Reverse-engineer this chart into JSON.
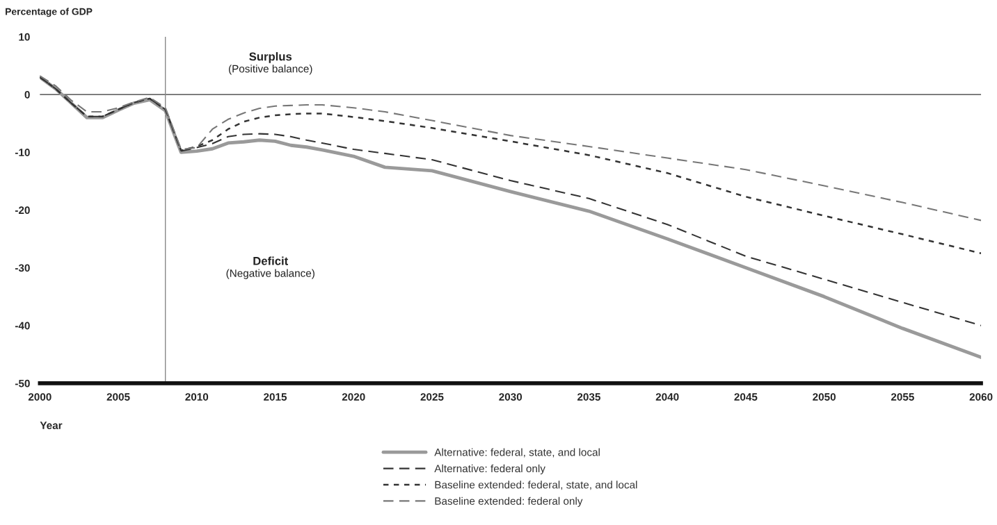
{
  "chart_data": {
    "type": "line",
    "ylabel": "Percentage of GDP",
    "xlabel": "Year",
    "x": [
      2000,
      2001,
      2002,
      2003,
      2004,
      2005,
      2006,
      2007,
      2008,
      2009,
      2010,
      2011,
      2012,
      2013,
      2014,
      2015,
      2016,
      2017,
      2018,
      2020,
      2022,
      2025,
      2030,
      2035,
      2040,
      2045,
      2050,
      2055,
      2060
    ],
    "series": [
      {
        "name": "Alternative: federal, state, and local",
        "color": "#9a9a9a",
        "line_style": "solid",
        "values": [
          3,
          1,
          -1.5,
          -4,
          -4,
          -2.7,
          -1.5,
          -0.9,
          -2.8,
          -10,
          -9.8,
          -9.4,
          -8.4,
          -8.2,
          -7.9,
          -8.1,
          -8.8,
          -9.1,
          -9.6,
          -10.7,
          -12.6,
          -13.2,
          -16.8,
          -20.2,
          -25,
          -30,
          -35,
          -40.5,
          -45.5
        ]
      },
      {
        "name": "Alternative: federal only",
        "color": "#333333",
        "line_style": "dashed",
        "values": [
          3,
          1,
          -1.5,
          -3.8,
          -3.8,
          -2.6,
          -1.4,
          -0.7,
          -2.6,
          -9.8,
          -9.2,
          -8.5,
          -7.3,
          -6.9,
          -6.8,
          -6.9,
          -7.3,
          -7.9,
          -8.4,
          -9.5,
          -10.2,
          -11.3,
          -14.9,
          -18,
          -22.5,
          -28,
          -32,
          -36,
          -40
        ]
      },
      {
        "name": "Baseline extended: federal, state, and local",
        "color": "#333333",
        "line_style": "dotted",
        "values": [
          3,
          1,
          -1.5,
          -3.8,
          -3.8,
          -2.6,
          -1.4,
          -0.7,
          -2.6,
          -9.7,
          -9,
          -7.9,
          -6,
          -4.7,
          -4,
          -3.6,
          -3.4,
          -3.3,
          -3.3,
          -3.9,
          -4.6,
          -5.8,
          -8.1,
          -10.5,
          -13.6,
          -17.7,
          -21,
          -24.2,
          -27.5
        ]
      },
      {
        "name": "Baseline extended: federal only",
        "color": "#777777",
        "line_style": "dashed",
        "values": [
          3.2,
          1.5,
          -1,
          -3,
          -3,
          -2.3,
          -1.3,
          -0.5,
          -2.3,
          -9.5,
          -9.2,
          -6,
          -4.3,
          -3.2,
          -2.4,
          -2,
          -1.9,
          -1.8,
          -1.8,
          -2.3,
          -3,
          -4.5,
          -7.1,
          -9,
          -11,
          -13,
          -15.8,
          -18.7,
          -21.8
        ]
      }
    ],
    "xlim": [
      2000,
      2060
    ],
    "xticks": [
      2000,
      2005,
      2010,
      2015,
      2020,
      2025,
      2030,
      2035,
      2040,
      2045,
      2050,
      2055,
      2060
    ],
    "ylim": [
      -50,
      10
    ],
    "yticks": [
      10,
      0,
      -10,
      -20,
      -30,
      -40,
      -50
    ],
    "ref_lines": [
      {
        "axis": "y",
        "value": 0,
        "color": "#333333"
      },
      {
        "axis": "x",
        "value": 2008,
        "color": "#888888"
      }
    ],
    "annotations": [
      "Surplus",
      "(Positive balance)",
      "Deficit",
      "(Negative balance)"
    ],
    "grid": false,
    "legend": "bottom"
  }
}
